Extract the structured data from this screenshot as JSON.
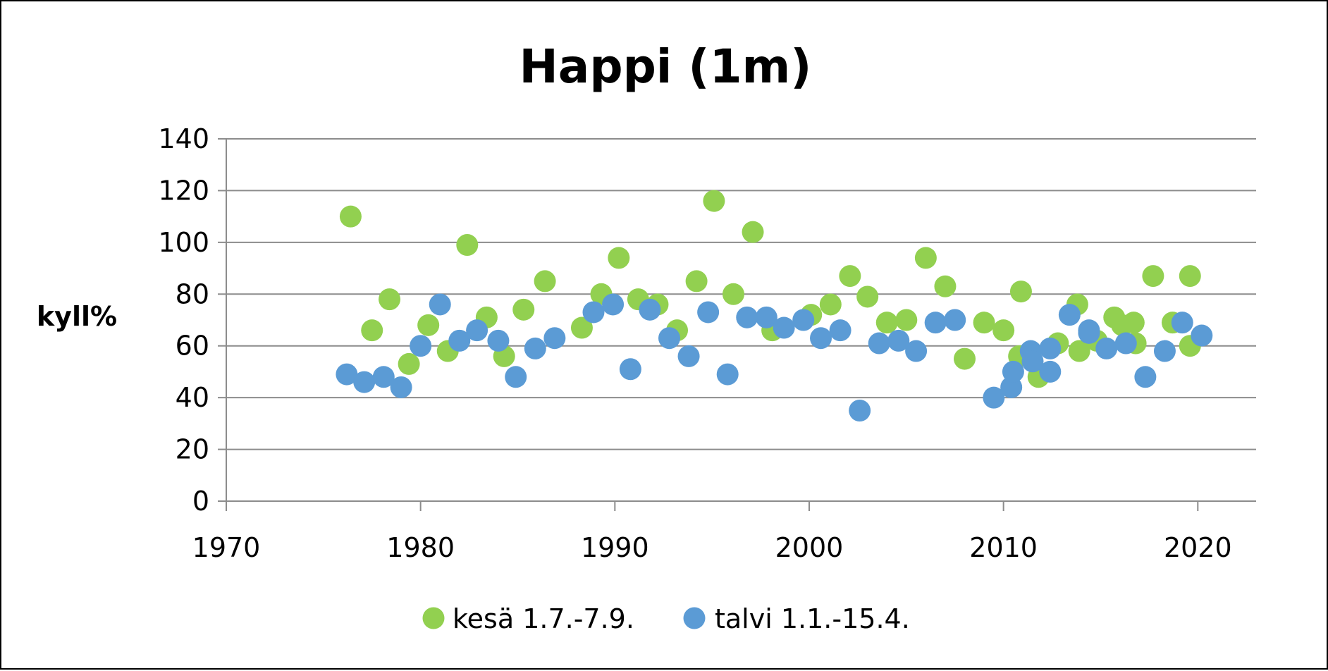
{
  "chart_data": {
    "type": "scatter",
    "title": "Happi (1m)",
    "xlabel": "",
    "ylabel": "kyll%",
    "xlim": [
      1970,
      2023
    ],
    "ylim": [
      0,
      140
    ],
    "xticks": [
      1970,
      1980,
      1990,
      2000,
      2010,
      2020
    ],
    "yticks": [
      0,
      20,
      40,
      60,
      80,
      100,
      120,
      140
    ],
    "grid": "horizontal",
    "legend_position": "bottom",
    "series": [
      {
        "name": "kesä 1.7.-7.9.",
        "color": "#92D050",
        "points": [
          [
            1976.4,
            110
          ],
          [
            1977.5,
            66
          ],
          [
            1978.4,
            78
          ],
          [
            1979.4,
            53
          ],
          [
            1980.4,
            68
          ],
          [
            1981.4,
            58
          ],
          [
            1982.4,
            99
          ],
          [
            1983.4,
            71
          ],
          [
            1984.3,
            56
          ],
          [
            1985.3,
            74
          ],
          [
            1986.4,
            85
          ],
          [
            1988.3,
            67
          ],
          [
            1989.3,
            80
          ],
          [
            1990.2,
            94
          ],
          [
            1991.2,
            78
          ],
          [
            1992.2,
            76
          ],
          [
            1993.2,
            66
          ],
          [
            1994.2,
            85
          ],
          [
            1995.1,
            116
          ],
          [
            1996.1,
            80
          ],
          [
            1997.1,
            104
          ],
          [
            1998.1,
            66
          ],
          [
            2000.1,
            72
          ],
          [
            2001.1,
            76
          ],
          [
            2002.1,
            87
          ],
          [
            2003.0,
            79
          ],
          [
            2004.0,
            69
          ],
          [
            2005.0,
            70
          ],
          [
            2006.0,
            94
          ],
          [
            2007.0,
            83
          ],
          [
            2008.0,
            55
          ],
          [
            2009.0,
            69
          ],
          [
            2010.0,
            66
          ],
          [
            2010.8,
            56
          ],
          [
            2010.9,
            81
          ],
          [
            2011.8,
            48
          ],
          [
            2012.8,
            61
          ],
          [
            2013.8,
            76
          ],
          [
            2013.9,
            58
          ],
          [
            2014.8,
            62
          ],
          [
            2015.7,
            71
          ],
          [
            2016.1,
            68
          ],
          [
            2016.7,
            69
          ],
          [
            2016.8,
            61
          ],
          [
            2017.7,
            87
          ],
          [
            2018.7,
            69
          ],
          [
            2019.6,
            60
          ],
          [
            2019.6,
            87
          ]
        ]
      },
      {
        "name": "talvi 1.1.-15.4.",
        "color": "#5B9BD5",
        "points": [
          [
            1976.2,
            49
          ],
          [
            1977.1,
            46
          ],
          [
            1978.1,
            48
          ],
          [
            1979.0,
            44
          ],
          [
            1980.0,
            60
          ],
          [
            1981.0,
            76
          ],
          [
            1982.0,
            62
          ],
          [
            1982.9,
            66
          ],
          [
            1984.0,
            62
          ],
          [
            1984.9,
            48
          ],
          [
            1985.9,
            59
          ],
          [
            1986.9,
            63
          ],
          [
            1988.9,
            73
          ],
          [
            1989.9,
            76
          ],
          [
            1990.8,
            51
          ],
          [
            1991.8,
            74
          ],
          [
            1992.8,
            63
          ],
          [
            1993.8,
            56
          ],
          [
            1994.8,
            73
          ],
          [
            1995.8,
            49
          ],
          [
            1996.8,
            71
          ],
          [
            1997.8,
            71
          ],
          [
            1998.7,
            67
          ],
          [
            1999.7,
            70
          ],
          [
            2000.6,
            63
          ],
          [
            2001.6,
            66
          ],
          [
            2002.6,
            35
          ],
          [
            2003.6,
            61
          ],
          [
            2004.6,
            62
          ],
          [
            2005.5,
            58
          ],
          [
            2006.5,
            69
          ],
          [
            2007.5,
            70
          ],
          [
            2009.5,
            40
          ],
          [
            2010.4,
            44
          ],
          [
            2010.5,
            50
          ],
          [
            2011.4,
            58
          ],
          [
            2011.5,
            54
          ],
          [
            2012.4,
            59
          ],
          [
            2012.4,
            50
          ],
          [
            2013.4,
            72
          ],
          [
            2014.4,
            66
          ],
          [
            2014.4,
            65
          ],
          [
            2015.3,
            59
          ],
          [
            2016.3,
            61
          ],
          [
            2017.3,
            48
          ],
          [
            2018.3,
            58
          ],
          [
            2019.2,
            69
          ],
          [
            2020.2,
            64
          ]
        ]
      }
    ]
  }
}
